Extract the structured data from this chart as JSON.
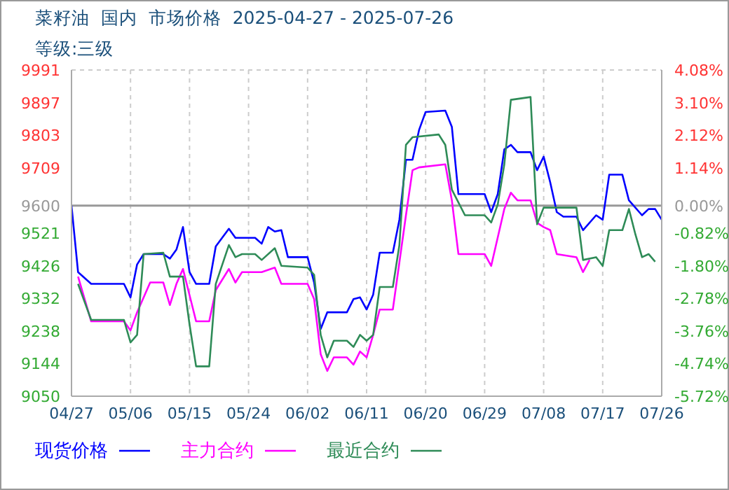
{
  "chart_data": {
    "type": "line",
    "title": "菜籽油  国内  市场价格  2025-04-27 - 2025-07-26",
    "subtitle": "等级:三级",
    "xlim": [
      "2025-04-27",
      "2025-07-26"
    ],
    "xticks": [
      {
        "value": "2025-04-27",
        "label": "04/27"
      },
      {
        "value": "2025-05-06",
        "label": "05/06"
      },
      {
        "value": "2025-05-15",
        "label": "05/15"
      },
      {
        "value": "2025-05-24",
        "label": "05/24"
      },
      {
        "value": "2025-06-02",
        "label": "06/02"
      },
      {
        "value": "2025-06-11",
        "label": "06/11"
      },
      {
        "value": "2025-06-20",
        "label": "06/20"
      },
      {
        "value": "2025-06-29",
        "label": "06/29"
      },
      {
        "value": "2025-07-08",
        "label": "07/08"
      },
      {
        "value": "2025-07-17",
        "label": "07/17"
      },
      {
        "value": "2025-07-26",
        "label": "07/26"
      }
    ],
    "ylim": [
      9050,
      9991
    ],
    "yticks": [
      9050,
      9144,
      9238,
      9332,
      9426,
      9521,
      9600,
      9709,
      9803,
      9897,
      9991
    ],
    "y2lim": [
      -5.72,
      4.08
    ],
    "y2ticks": [
      {
        "value": -5.72,
        "label": "-5.72%"
      },
      {
        "value": -4.74,
        "label": "-4.74%"
      },
      {
        "value": -3.76,
        "label": "-3.76%"
      },
      {
        "value": -2.78,
        "label": "-2.78%"
      },
      {
        "value": -1.8,
        "label": "-1.80%"
      },
      {
        "value": -0.82,
        "label": "-0.82%"
      },
      {
        "value": 0,
        "label": "0.00%"
      },
      {
        "value": 1.14,
        "label": "1.14%"
      },
      {
        "value": 2.12,
        "label": "2.12%"
      },
      {
        "value": 3.1,
        "label": "3.10%"
      },
      {
        "value": 4.08,
        "label": "4.08%"
      }
    ],
    "grid": true,
    "legend": "bottom",
    "marker": "none",
    "line_style": "solid",
    "ref_lines": [
      {
        "axis": "y",
        "value": 9600,
        "color": "#999999",
        "line_style": "solid"
      }
    ],
    "series": [
      {
        "name": "现货价格",
        "color": "#0000ff",
        "x": [
          "2025-04-27",
          "2025-04-28",
          "2025-04-30",
          "2025-05-05",
          "2025-05-06",
          "2025-05-07",
          "2025-05-08",
          "2025-05-11",
          "2025-05-12",
          "2025-05-13",
          "2025-05-14",
          "2025-05-15",
          "2025-05-16",
          "2025-05-18",
          "2025-05-19",
          "2025-05-21",
          "2025-05-22",
          "2025-05-25",
          "2025-05-26",
          "2025-05-27",
          "2025-05-28",
          "2025-05-29",
          "2025-05-30",
          "2025-06-02",
          "2025-06-03",
          "2025-06-04",
          "2025-06-05",
          "2025-06-08",
          "2025-06-09",
          "2025-06-10",
          "2025-06-11",
          "2025-06-12",
          "2025-06-13",
          "2025-06-15",
          "2025-06-16",
          "2025-06-17",
          "2025-06-18",
          "2025-06-19",
          "2025-06-20",
          "2025-06-23",
          "2025-06-24",
          "2025-06-25",
          "2025-06-29",
          "2025-06-30",
          "2025-07-01",
          "2025-07-02",
          "2025-07-03",
          "2025-07-04",
          "2025-07-06",
          "2025-07-07",
          "2025-07-08",
          "2025-07-09",
          "2025-07-10",
          "2025-07-11",
          "2025-07-13",
          "2025-07-14",
          "2025-07-16",
          "2025-07-17",
          "2025-07-18",
          "2025-07-20",
          "2025-07-21",
          "2025-07-23",
          "2025-07-24",
          "2025-07-25",
          "2025-07-26"
        ],
        "values": [
          9600,
          9408,
          9374,
          9374,
          9335,
          9430,
          9460,
          9460,
          9447,
          9473,
          9538,
          9408,
          9374,
          9374,
          9482,
          9533,
          9507,
          9507,
          9490,
          9538,
          9525,
          9529,
          9451,
          9451,
          9378,
          9244,
          9292,
          9292,
          9330,
          9335,
          9300,
          9343,
          9464,
          9464,
          9559,
          9732,
          9732,
          9818,
          9870,
          9874,
          9827,
          9633,
          9633,
          9581,
          9633,
          9762,
          9775,
          9754,
          9754,
          9702,
          9741,
          9667,
          9581,
          9568,
          9568,
          9529,
          9572,
          9559,
          9689,
          9689,
          9615,
          9572,
          9590,
          9590,
          9559
        ]
      },
      {
        "name": "主力合约",
        "color": "#ff00ff",
        "x": [
          "2025-04-28",
          "2025-04-30",
          "2025-05-05",
          "2025-05-06",
          "2025-05-07",
          "2025-05-09",
          "2025-05-11",
          "2025-05-12",
          "2025-05-13",
          "2025-05-14",
          "2025-05-16",
          "2025-05-18",
          "2025-05-19",
          "2025-05-21",
          "2025-05-22",
          "2025-05-23",
          "2025-05-26",
          "2025-05-28",
          "2025-05-29",
          "2025-06-02",
          "2025-06-03",
          "2025-06-04",
          "2025-06-05",
          "2025-06-06",
          "2025-06-08",
          "2025-06-09",
          "2025-06-10",
          "2025-06-11",
          "2025-06-12",
          "2025-06-13",
          "2025-06-15",
          "2025-06-17",
          "2025-06-18",
          "2025-06-19",
          "2025-06-23",
          "2025-06-24",
          "2025-06-25",
          "2025-06-29",
          "2025-06-30",
          "2025-07-02",
          "2025-07-03",
          "2025-07-04",
          "2025-07-06",
          "2025-07-07",
          "2025-07-08",
          "2025-07-09",
          "2025-07-10",
          "2025-07-13",
          "2025-07-14",
          "2025-07-15"
        ],
        "values": [
          9395,
          9266,
          9266,
          9240,
          9292,
          9378,
          9378,
          9313,
          9374,
          9417,
          9266,
          9266,
          9356,
          9417,
          9378,
          9408,
          9408,
          9421,
          9374,
          9374,
          9330,
          9171,
          9123,
          9162,
          9162,
          9141,
          9179,
          9162,
          9227,
          9300,
          9300,
          9572,
          9702,
          9710,
          9719,
          9615,
          9460,
          9460,
          9426,
          9590,
          9637,
          9615,
          9615,
          9550,
          9538,
          9529,
          9460,
          9451,
          9408,
          9443
        ]
      },
      {
        "name": "最近合约",
        "color": "#2e8b57",
        "x": [
          "2025-04-28",
          "2025-04-30",
          "2025-05-05",
          "2025-05-06",
          "2025-05-07",
          "2025-05-08",
          "2025-05-11",
          "2025-05-12",
          "2025-05-14",
          "2025-05-15",
          "2025-05-16",
          "2025-05-18",
          "2025-05-19",
          "2025-05-21",
          "2025-05-22",
          "2025-05-23",
          "2025-05-25",
          "2025-05-26",
          "2025-05-28",
          "2025-05-29",
          "2025-06-02",
          "2025-06-03",
          "2025-06-04",
          "2025-06-05",
          "2025-06-06",
          "2025-06-08",
          "2025-06-09",
          "2025-06-10",
          "2025-06-11",
          "2025-06-12",
          "2025-06-13",
          "2025-06-15",
          "2025-06-16",
          "2025-06-17",
          "2025-06-18",
          "2025-06-22",
          "2025-06-23",
          "2025-06-24",
          "2025-06-26",
          "2025-06-29",
          "2025-06-30",
          "2025-07-01",
          "2025-07-02",
          "2025-07-03",
          "2025-07-06",
          "2025-07-07",
          "2025-07-08",
          "2025-07-13",
          "2025-07-14",
          "2025-07-16",
          "2025-07-17",
          "2025-07-18",
          "2025-07-20",
          "2025-07-21",
          "2025-07-22",
          "2025-07-23",
          "2025-07-24",
          "2025-07-25"
        ],
        "values": [
          9374,
          9270,
          9270,
          9205,
          9227,
          9460,
          9464,
          9395,
          9395,
          9257,
          9136,
          9136,
          9374,
          9486,
          9451,
          9460,
          9460,
          9443,
          9477,
          9426,
          9421,
          9400,
          9227,
          9162,
          9210,
          9210,
          9192,
          9227,
          9210,
          9227,
          9365,
          9365,
          9486,
          9775,
          9797,
          9805,
          9775,
          9646,
          9572,
          9572,
          9551,
          9603,
          9719,
          9905,
          9913,
          9546,
          9594,
          9594,
          9443,
          9451,
          9426,
          9529,
          9529,
          9590,
          9516,
          9451,
          9460,
          9438
        ]
      }
    ]
  }
}
